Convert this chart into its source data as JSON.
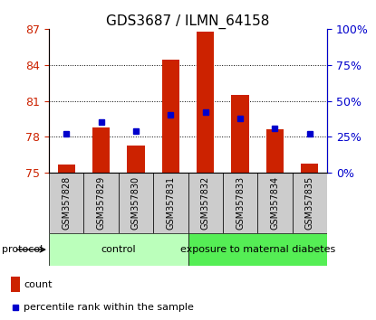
{
  "title": "GDS3687 / ILMN_64158",
  "samples": [
    "GSM357828",
    "GSM357829",
    "GSM357830",
    "GSM357831",
    "GSM357832",
    "GSM357833",
    "GSM357834",
    "GSM357835"
  ],
  "count_values": [
    75.7,
    78.8,
    77.3,
    84.4,
    86.8,
    81.5,
    78.6,
    75.8
  ],
  "percentile_values": [
    27,
    35,
    29,
    40,
    42,
    38,
    31,
    27
  ],
  "ylim_left": [
    75,
    87
  ],
  "ylim_right": [
    0,
    100
  ],
  "yticks_left": [
    75,
    78,
    81,
    84,
    87
  ],
  "yticks_right": [
    0,
    25,
    50,
    75,
    100
  ],
  "ytick_labels_right": [
    "0%",
    "25%",
    "50%",
    "75%",
    "100%"
  ],
  "bar_color": "#cc2200",
  "dot_color": "#0000cc",
  "bar_baseline": 75,
  "protocol_groups": [
    {
      "label": "control",
      "start": 0,
      "end": 4,
      "color": "#bbffbb"
    },
    {
      "label": "exposure to maternal diabetes",
      "start": 4,
      "end": 8,
      "color": "#55ee55"
    }
  ],
  "protocol_label": "protocol",
  "legend_count_label": "count",
  "legend_pct_label": "percentile rank within the sample",
  "left_axis_color": "#cc2200",
  "right_axis_color": "#0000cc",
  "sample_box_color": "#cccccc",
  "sample_text_fontsize": 7,
  "title_fontsize": 11,
  "tick_fontsize": 9,
  "proto_fontsize": 8,
  "legend_fontsize": 8
}
